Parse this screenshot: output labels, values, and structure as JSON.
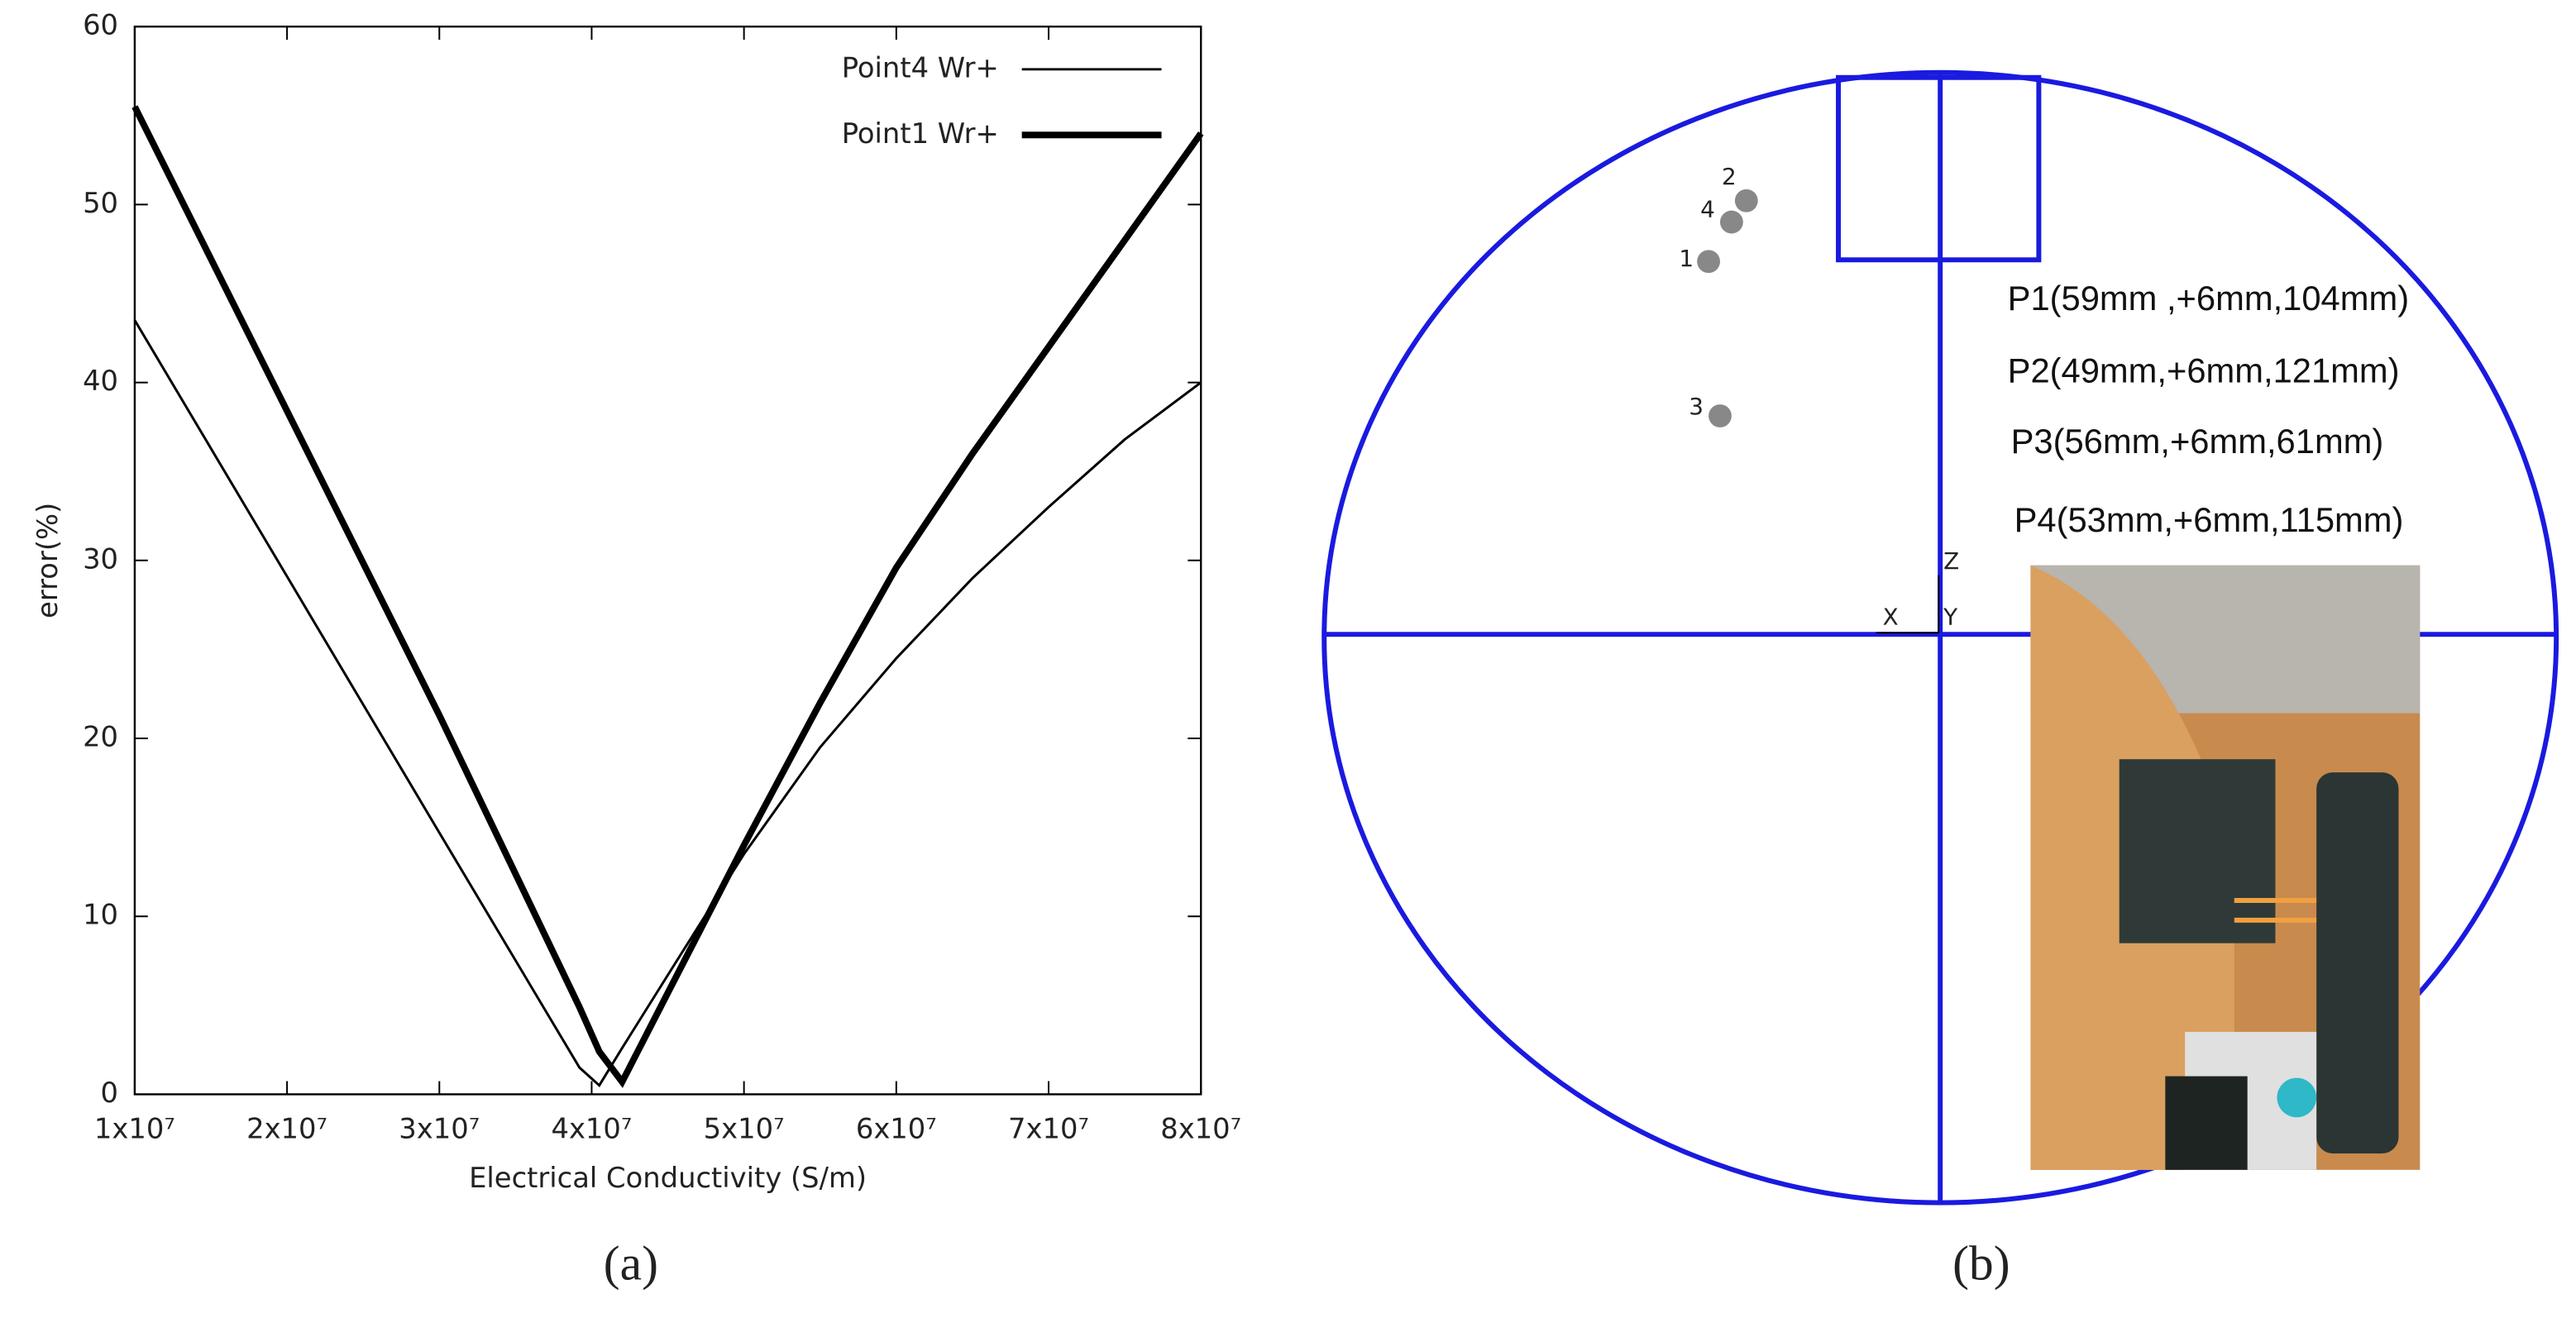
{
  "chart_data": {
    "type": "line",
    "x_label": "Electrical Conductivity (S/m)",
    "y_label": "error(%)",
    "x": [
      10000000,
      20000000,
      30000000,
      39200000,
      40500000,
      42000000,
      45000000,
      50000000,
      55000000,
      60000000,
      65000000,
      70000000,
      75000000,
      80000000
    ],
    "series": [
      {
        "name": "Point4 Wr+",
        "color": "#000000",
        "line_width": 1.5,
        "values": [
          43.5,
          29.1,
          14.7,
          1.5,
          0.5,
          2.6,
          6.7,
          13.5,
          19.5,
          24.5,
          29,
          33,
          36.8,
          40
        ]
      },
      {
        "name": "Point1 Wr+",
        "color": "#000000",
        "line_width": 4,
        "values": [
          55.5,
          38.4,
          21.3,
          4.9,
          2.4,
          0.7,
          5.7,
          14,
          22,
          29.6,
          36,
          42,
          48,
          54
        ]
      }
    ],
    "xlim": [
      10000000,
      80000000
    ],
    "xticks": [
      {
        "value": 10000000,
        "label": "1x10⁷"
      },
      {
        "value": 20000000,
        "label": "2x10⁷"
      },
      {
        "value": 30000000,
        "label": "3x10⁷"
      },
      {
        "value": 40000000,
        "label": "4x10⁷"
      },
      {
        "value": 50000000,
        "label": "5x10⁷"
      },
      {
        "value": 60000000,
        "label": "6x10⁷"
      },
      {
        "value": 70000000,
        "label": "7x10⁷"
      },
      {
        "value": 80000000,
        "label": "8x10⁷"
      }
    ],
    "ylim": [
      0,
      60
    ],
    "yticks": [
      0,
      10,
      20,
      30,
      40,
      50,
      60
    ],
    "grid": false,
    "legend": "top-right"
  },
  "panel_b": {
    "points": [
      "1",
      "2",
      "3",
      "4"
    ],
    "coordinates": [
      "P1(59mm ,+6mm,104mm)",
      "P2(49mm,+6mm,121mm)",
      "P3(56mm,+6mm,61mm)",
      "P4(53mm,+6mm,115mm)"
    ],
    "axes": {
      "x": "X",
      "y": "Y",
      "z": "Z"
    }
  },
  "captions": [
    "(a)",
    "(b)"
  ]
}
